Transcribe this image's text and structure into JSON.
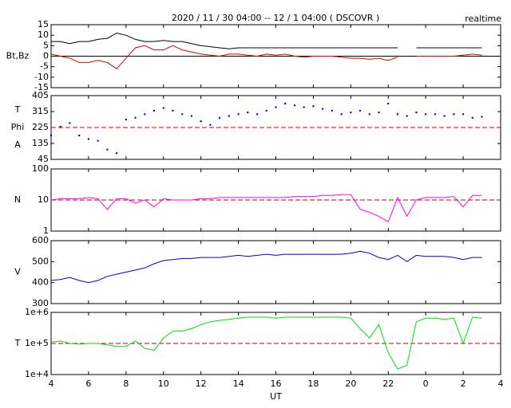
{
  "chart_data": [
    {
      "type": "line",
      "title": "2020 / 11 / 30   04:00 -- 12 / 1   04:00 ( DSCOVR )",
      "annotation": "realtime",
      "ylabel": [
        "Bt,Bz"
      ],
      "ylim": [
        -15,
        15
      ],
      "yticks": [
        15,
        10,
        5,
        0,
        -5,
        -10,
        -15
      ],
      "log": false,
      "refline": 0,
      "refline_color": "#000000",
      "refline_dashed": false,
      "x": [
        4,
        4.5,
        5,
        5.5,
        6,
        6.5,
        7,
        7.5,
        8,
        8.5,
        9,
        9.5,
        10,
        10.5,
        11,
        11.5,
        12,
        12.5,
        13,
        13.5,
        14,
        14.5,
        15,
        15.5,
        16,
        16.5,
        17,
        17.5,
        18,
        18.5,
        19,
        19.5,
        20,
        20.5,
        21,
        21.5,
        22,
        22.5,
        23,
        23.5,
        24,
        24.5,
        25,
        25.5,
        26,
        26.5,
        27
      ],
      "series": [
        {
          "color": "#000000",
          "values": [
            7,
            7,
            6,
            7,
            7,
            8,
            8.5,
            11,
            10,
            8,
            7,
            7,
            7.5,
            7,
            7,
            6,
            5,
            4.5,
            4,
            3.5,
            4,
            4,
            4,
            4,
            4,
            4,
            4,
            4,
            4,
            4,
            4,
            4,
            4,
            4,
            4,
            4,
            4,
            4,
            null,
            4,
            4,
            4,
            4,
            4,
            4,
            4,
            4
          ]
        },
        {
          "color": "#e00000",
          "values": [
            1,
            0,
            -1,
            -3,
            -3,
            -2,
            -3,
            -6,
            -1,
            4,
            5,
            3,
            3,
            5,
            3,
            2,
            1,
            0.5,
            0,
            1,
            1,
            0.5,
            0,
            1,
            0.5,
            1,
            0,
            -0.5,
            0,
            0,
            0,
            -0.5,
            -1,
            -1,
            -1.5,
            -1,
            -2,
            -0.5,
            null,
            0,
            0,
            0,
            0,
            0,
            0.5,
            1,
            0.5
          ]
        }
      ]
    },
    {
      "type": "scatter",
      "ylabel": [
        "T",
        "Phi",
        "A"
      ],
      "ylim": [
        45,
        405
      ],
      "yticks": [
        405,
        315,
        225,
        135,
        45
      ],
      "log": false,
      "refline": 225,
      "refline_color": "#c00000",
      "refline_dashed": true,
      "x": [
        4,
        4.5,
        5,
        5.5,
        6,
        6.5,
        7,
        7.5,
        8,
        8.5,
        9,
        9.5,
        10,
        10.5,
        11,
        11.5,
        12,
        12.5,
        13,
        13.5,
        14,
        14.5,
        15,
        15.5,
        16,
        16.5,
        17,
        17.5,
        18,
        18.5,
        19,
        19.5,
        20,
        20.5,
        21,
        21.5,
        22,
        22.5,
        23,
        23.5,
        24,
        24.5,
        25,
        25.5,
        26,
        26.5,
        27
      ],
      "series": [
        {
          "color": "#0000d0",
          "values": [
            180,
            230,
            250,
            180,
            160,
            150,
            100,
            80,
            270,
            280,
            300,
            320,
            335,
            320,
            300,
            290,
            260,
            240,
            280,
            290,
            300,
            310,
            300,
            320,
            340,
            360,
            350,
            340,
            345,
            330,
            320,
            300,
            310,
            320,
            300,
            310,
            360,
            300,
            290,
            310,
            300,
            300,
            290,
            300,
            300,
            280,
            285
          ]
        }
      ]
    },
    {
      "type": "line",
      "ylabel": [
        "N"
      ],
      "ylim": [
        1,
        100
      ],
      "yticks": [
        100,
        10,
        1
      ],
      "log": true,
      "refline": 10,
      "refline_color": "#c00000",
      "refline_dashed": true,
      "x": [
        4,
        4.5,
        5,
        5.5,
        6,
        6.5,
        7,
        7.5,
        8,
        8.5,
        9,
        9.5,
        10,
        10.5,
        11,
        11.5,
        12,
        12.5,
        13,
        13.5,
        14,
        14.5,
        15,
        15.5,
        16,
        16.5,
        17,
        17.5,
        18,
        18.5,
        19,
        19.5,
        20,
        20.5,
        21,
        21.5,
        22,
        22.5,
        23,
        23.5,
        24,
        24.5,
        25,
        25.5,
        26,
        26.5,
        27
      ],
      "series": [
        {
          "color": "#ff00ff",
          "values": [
            10,
            11,
            11,
            11,
            12,
            11,
            5,
            11,
            11,
            8,
            10,
            6,
            11,
            10,
            10,
            10,
            11,
            11,
            12,
            12,
            12,
            12,
            12,
            12,
            12,
            12,
            13,
            13,
            13,
            14,
            14,
            15,
            15,
            5,
            4,
            3,
            2,
            12,
            3,
            10,
            12,
            12,
            12,
            13,
            6,
            14,
            14
          ]
        }
      ]
    },
    {
      "type": "line",
      "ylabel": [
        "V"
      ],
      "ylim": [
        300,
        600
      ],
      "yticks": [
        600,
        500,
        400,
        300
      ],
      "log": false,
      "x": [
        4,
        4.5,
        5,
        5.5,
        6,
        6.5,
        7,
        7.5,
        8,
        8.5,
        9,
        9.5,
        10,
        10.5,
        11,
        11.5,
        12,
        12.5,
        13,
        13.5,
        14,
        14.5,
        15,
        15.5,
        16,
        16.5,
        17,
        17.5,
        18,
        18.5,
        19,
        19.5,
        20,
        20.5,
        21,
        21.5,
        22,
        22.5,
        23,
        23.5,
        24,
        24.5,
        25,
        25.5,
        26,
        26.5,
        27
      ],
      "series": [
        {
          "color": "#0000e0",
          "values": [
            410,
            415,
            425,
            410,
            400,
            410,
            430,
            440,
            450,
            460,
            470,
            490,
            505,
            510,
            515,
            515,
            520,
            520,
            520,
            525,
            530,
            525,
            530,
            535,
            530,
            535,
            535,
            535,
            535,
            535,
            535,
            535,
            540,
            550,
            540,
            520,
            510,
            530,
            500,
            530,
            525,
            525,
            525,
            520,
            510,
            520,
            520
          ]
        }
      ]
    },
    {
      "type": "line",
      "ylabel": [
        "T"
      ],
      "xlabel": "UT",
      "ylim": [
        10000,
        1000000
      ],
      "yticks": [
        {
          "value": 1000000,
          "label": "1e+6"
        },
        {
          "value": 100000,
          "label": "1e+5"
        },
        {
          "value": 10000,
          "label": "1e+4"
        }
      ],
      "log": true,
      "refline": 100000,
      "refline_color": "#c00000",
      "refline_dashed": true,
      "xlim": [
        4,
        28
      ],
      "xticks": [
        4,
        6,
        8,
        10,
        12,
        14,
        16,
        18,
        20,
        22,
        {
          "value": 24,
          "label": "0"
        },
        {
          "value": 26,
          "label": "2"
        },
        {
          "value": 28,
          "label": "4"
        }
      ],
      "x": [
        4,
        4.5,
        5,
        5.5,
        6,
        6.5,
        7,
        7.5,
        8,
        8.5,
        9,
        9.5,
        10,
        10.5,
        11,
        11.5,
        12,
        12.5,
        13,
        13.5,
        14,
        14.5,
        15,
        15.5,
        16,
        16.5,
        17,
        17.5,
        18,
        18.5,
        19,
        19.5,
        20,
        20.5,
        21,
        21.5,
        22,
        22.5,
        23,
        23.5,
        24,
        24.5,
        25,
        25.5,
        26,
        26.5,
        27
      ],
      "series": [
        {
          "color": "#00e000",
          "values": [
            110000,
            120000,
            100000,
            95000,
            100000,
            100000,
            90000,
            80000,
            80000,
            120000,
            70000,
            60000,
            150000,
            250000,
            250000,
            300000,
            400000,
            500000,
            550000,
            600000,
            650000,
            700000,
            700000,
            700000,
            650000,
            700000,
            700000,
            700000,
            700000,
            700000,
            700000,
            700000,
            650000,
            300000,
            150000,
            400000,
            50000,
            15000,
            20000,
            500000,
            650000,
            650000,
            600000,
            650000,
            100000,
            700000,
            650000
          ]
        }
      ]
    }
  ]
}
